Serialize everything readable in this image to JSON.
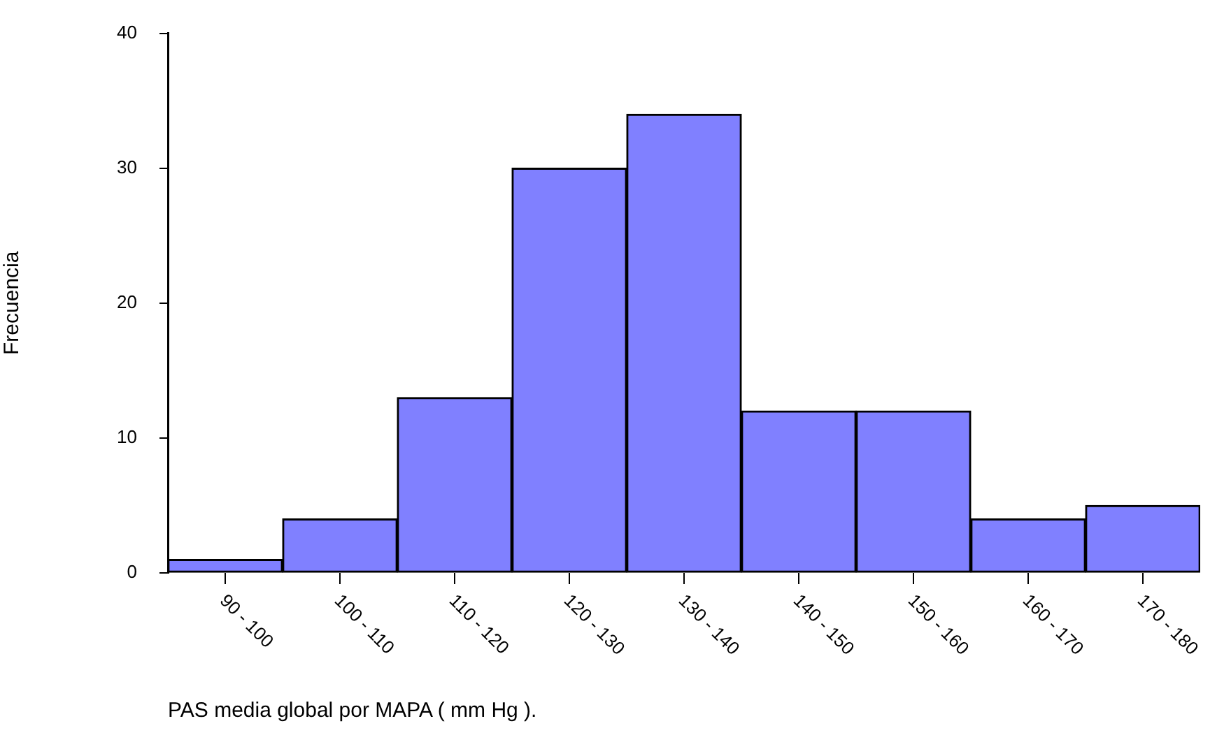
{
  "chart_data": {
    "type": "bar",
    "xlabel": "PAS media global por MAPA ( mm Hg ).",
    "ylabel": "Frecuencia",
    "categories": [
      "90 - 100",
      "100 - 110",
      "110 - 120",
      "120 - 130",
      "130 - 140",
      "140 - 150",
      "150 - 160",
      "160 - 170",
      "170 - 180"
    ],
    "values": [
      1,
      4,
      13,
      30,
      34,
      12,
      12,
      4,
      5
    ],
    "color": "#8080ff",
    "ylim": [
      0,
      40
    ],
    "yticks": [
      0,
      10,
      20,
      30,
      40
    ],
    "grid": false,
    "legend": false
  }
}
